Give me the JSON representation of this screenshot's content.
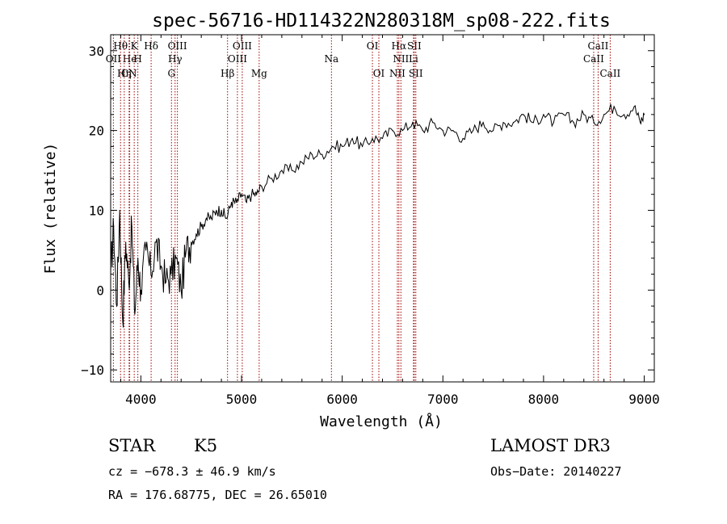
{
  "chart_data": {
    "type": "line",
    "title": "spec-56716-HD114322N280318M_sp08-222.fits",
    "xlabel": "Wavelength (Å)",
    "ylabel": "Flux (relative)",
    "xlim": [
      3700,
      9100
    ],
    "ylim": [
      -11.5,
      32
    ],
    "x_ticks": [
      4000,
      5000,
      6000,
      7000,
      8000,
      9000
    ],
    "x_tick_labels": [
      "4000",
      "5000",
      "6000",
      "7000",
      "8000",
      "9000"
    ],
    "y_ticks": [
      -10,
      0,
      10,
      20,
      30
    ],
    "y_tick_labels": [
      "−10",
      "0",
      "10",
      "20",
      "30"
    ],
    "series": [
      {
        "name": "spectrum",
        "x": [
          3700,
          3730,
          3760,
          3790,
          3820,
          3850,
          3880,
          3910,
          3940,
          3970,
          4000,
          4050,
          4100,
          4150,
          4200,
          4250,
          4300,
          4350,
          4400,
          4450,
          4500,
          4550,
          4600,
          4650,
          4700,
          4750,
          4800,
          4850,
          4900,
          4950,
          5000,
          5050,
          5100,
          5150,
          5200,
          5300,
          5400,
          5500,
          5600,
          5700,
          5800,
          5900,
          6000,
          6100,
          6200,
          6300,
          6400,
          6500,
          6600,
          6700,
          6800,
          6900,
          7000,
          7100,
          7200,
          7300,
          7400,
          7500,
          7600,
          7700,
          7800,
          7900,
          8000,
          8100,
          8200,
          8300,
          8400,
          8500,
          8600,
          8700,
          8800,
          8900,
          8960,
          9000
        ],
        "values": [
          2,
          8,
          -2,
          10,
          -4,
          6,
          1,
          8,
          -3,
          4,
          0,
          5,
          2,
          6,
          3,
          1,
          2,
          4,
          0,
          5,
          6,
          7,
          8,
          9,
          9,
          10,
          10,
          9,
          11,
          11,
          12,
          11,
          12,
          12,
          13,
          14,
          15,
          15,
          16,
          17,
          17,
          18,
          18,
          19,
          18,
          19,
          19,
          20,
          20,
          21,
          20,
          21,
          20,
          20,
          19,
          20,
          21,
          20,
          21,
          21,
          22,
          21,
          22,
          21,
          22,
          21,
          22,
          21,
          22,
          23,
          22,
          23,
          21,
          22
        ]
      }
    ],
    "line_markers": [
      {
        "label": "Hθ",
        "wavelength": 3798,
        "row": 1
      },
      {
        "label": "K",
        "wavelength": 3934,
        "row": 1
      },
      {
        "label": "Hδ",
        "wavelength": 4102,
        "row": 1
      },
      {
        "label": "OIII",
        "wavelength": 4363,
        "row": 1
      },
      {
        "label": "OIII",
        "wavelength": 5007,
        "row": 1
      },
      {
        "label": "OI",
        "wavelength": 6300,
        "row": 1
      },
      {
        "label": "Hα",
        "wavelength": 6563,
        "row": 1
      },
      {
        "label": "SII",
        "wavelength": 6716,
        "row": 1
      },
      {
        "label": "CaII",
        "wavelength": 8542,
        "row": 1
      },
      {
        "label": "OII",
        "wavelength": 3727,
        "row": 2
      },
      {
        "label": "He",
        "wavelength": 3889,
        "row": 2
      },
      {
        "label": "H",
        "wavelength": 3970,
        "row": 2
      },
      {
        "label": "Hγ",
        "wavelength": 4340,
        "row": 2
      },
      {
        "label": "OIII",
        "wavelength": 4959,
        "row": 2
      },
      {
        "label": "Na",
        "wavelength": 5893,
        "row": 2
      },
      {
        "label": "NII",
        "wavelength": 6583,
        "row": 2
      },
      {
        "label": "Li",
        "wavelength": 6708,
        "row": 2
      },
      {
        "label": "CaII",
        "wavelength": 8498,
        "row": 2
      },
      {
        "label": "CN",
        "wavelength": 3883,
        "row": 3
      },
      {
        "label": "Hη",
        "wavelength": 3835,
        "row": 3
      },
      {
        "label": "G",
        "wavelength": 4304,
        "row": 3
      },
      {
        "label": "Hβ",
        "wavelength": 4861,
        "row": 3
      },
      {
        "label": "Mg",
        "wavelength": 5175,
        "row": 3
      },
      {
        "label": "OI",
        "wavelength": 6364,
        "row": 3
      },
      {
        "label": "NII",
        "wavelength": 6548,
        "row": 3
      },
      {
        "label": "SII",
        "wavelength": 6731,
        "row": 3
      },
      {
        "label": "CaII",
        "wavelength": 8662,
        "row": 3
      }
    ],
    "colors": {
      "spectrum": "#000000",
      "marker": "#a00000"
    }
  },
  "info": {
    "object_class": "STAR",
    "subclass": "K5",
    "survey": "LAMOST DR3",
    "cz": "cz = −678.3 ± 46.9 km/s",
    "obs_date": "Obs−Date: 20140227",
    "coords": "RA = 176.68775, DEC =  26.65010"
  }
}
